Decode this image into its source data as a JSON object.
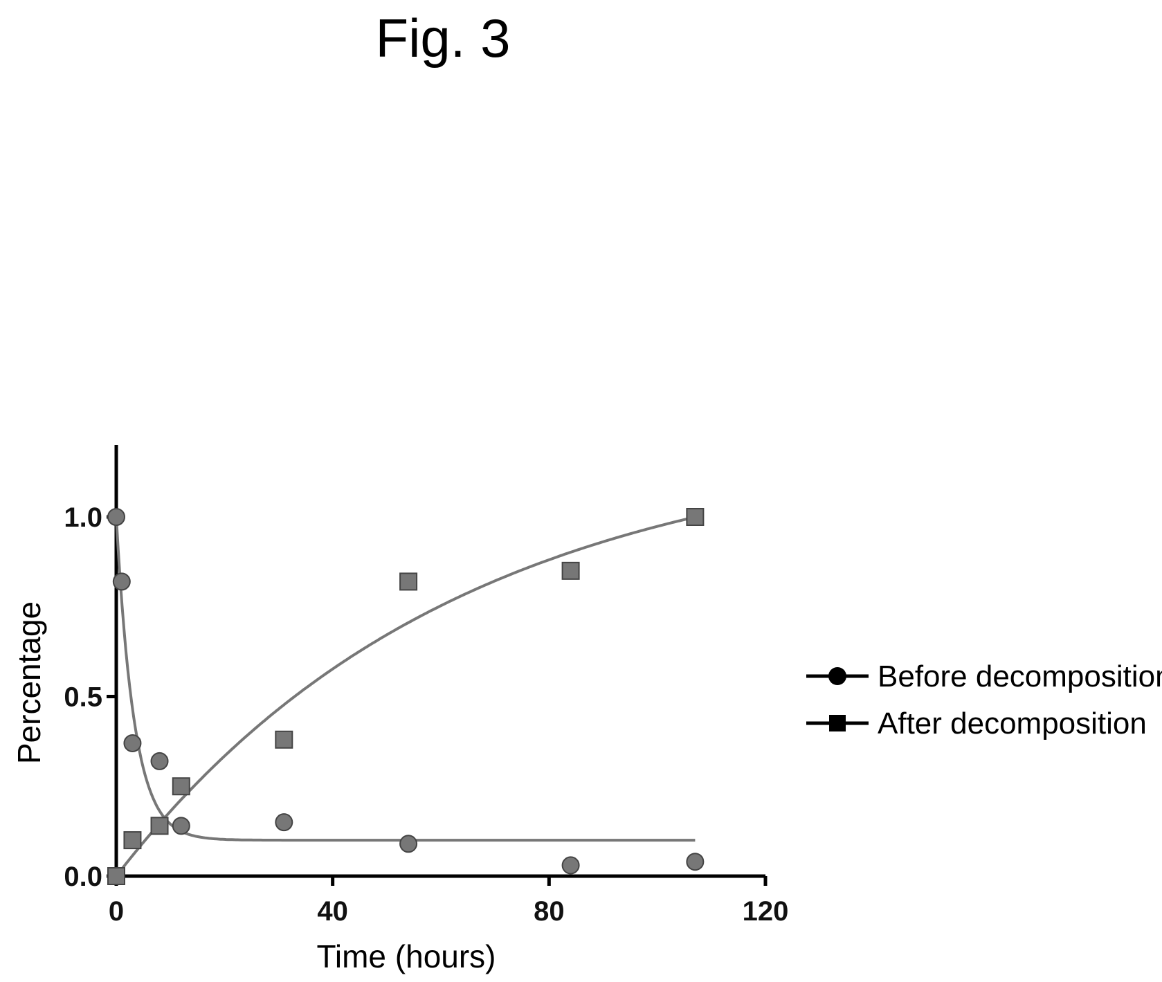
{
  "figure": {
    "title": "Fig. 3"
  },
  "chart_data": {
    "type": "scatter",
    "title": "",
    "xlabel": "Time (hours)",
    "ylabel": "Percentage",
    "xlim": [
      0,
      120
    ],
    "ylim": [
      0,
      1.2
    ],
    "xticks": [
      0,
      40,
      80,
      120
    ],
    "yticks": [
      0.0,
      0.5,
      1.0
    ],
    "ytick_labels": [
      "0.0",
      "0.5",
      "1.0"
    ],
    "xtick_labels": [
      "0",
      "40",
      "80",
      "120"
    ],
    "grid": false,
    "legend_position": "right",
    "series": [
      {
        "name": "Before decomposition",
        "marker": "circle",
        "points": [
          {
            "x": 0,
            "y": 1.0
          },
          {
            "x": 1,
            "y": 0.82
          },
          {
            "x": 3,
            "y": 0.37
          },
          {
            "x": 8,
            "y": 0.32
          },
          {
            "x": 12,
            "y": 0.14
          },
          {
            "x": 31,
            "y": 0.15
          },
          {
            "x": 54,
            "y": 0.09
          },
          {
            "x": 84,
            "y": 0.03
          },
          {
            "x": 107,
            "y": 0.04
          }
        ],
        "fit": {
          "model": "exponential_decay",
          "y0": 1.0,
          "plateau": 0.1,
          "k": 0.3
        }
      },
      {
        "name": "After decomposition",
        "marker": "square",
        "points": [
          {
            "x": 0,
            "y": 0.0
          },
          {
            "x": 3,
            "y": 0.1
          },
          {
            "x": 8,
            "y": 0.14
          },
          {
            "x": 12,
            "y": 0.25
          },
          {
            "x": 31,
            "y": 0.38
          },
          {
            "x": 54,
            "y": 0.82
          },
          {
            "x": 84,
            "y": 0.85
          },
          {
            "x": 107,
            "y": 1.0
          }
        ],
        "fit": {
          "model": "exponential_rise",
          "y0": 0.0,
          "plateau": 1.22,
          "k": 0.016
        }
      }
    ]
  }
}
